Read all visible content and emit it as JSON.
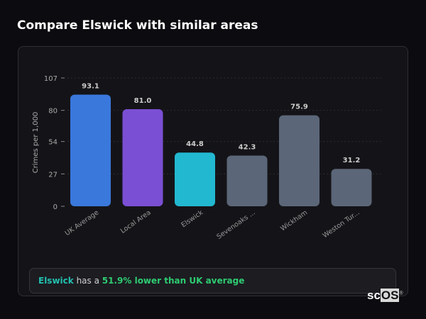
{
  "header": {
    "title": "Compare Elswick with similar areas"
  },
  "chart_data": {
    "type": "bar",
    "categories": [
      "UK Average",
      "Local Area",
      "Elswick",
      "Sevenoaks ...",
      "Wickham",
      "Weston Tur..."
    ],
    "values": [
      93.1,
      81.0,
      44.8,
      42.3,
      75.9,
      31.2
    ],
    "value_labels": [
      "93.1",
      "81.0",
      "44.8",
      "42.3",
      "75.9",
      "31.2"
    ],
    "colors": [
      "#3a78dc",
      "#7b4fd4",
      "#22b8d0",
      "#5b6678",
      "#5b6678",
      "#5b6678"
    ],
    "ylabel": "Crimes per 1,000",
    "xlabel": "",
    "yticks": [
      0,
      27,
      54,
      80,
      107
    ],
    "ylim": [
      0,
      107
    ],
    "grid": true
  },
  "summary": {
    "area": "Elswick",
    "middle": " has a ",
    "comparison": "51.9% lower than UK average",
    "area_color": "#22c0b0",
    "comparison_color": "#2ecc71"
  },
  "logo": {
    "text_a": "sc",
    "text_b": "OS",
    "mark": "®"
  }
}
